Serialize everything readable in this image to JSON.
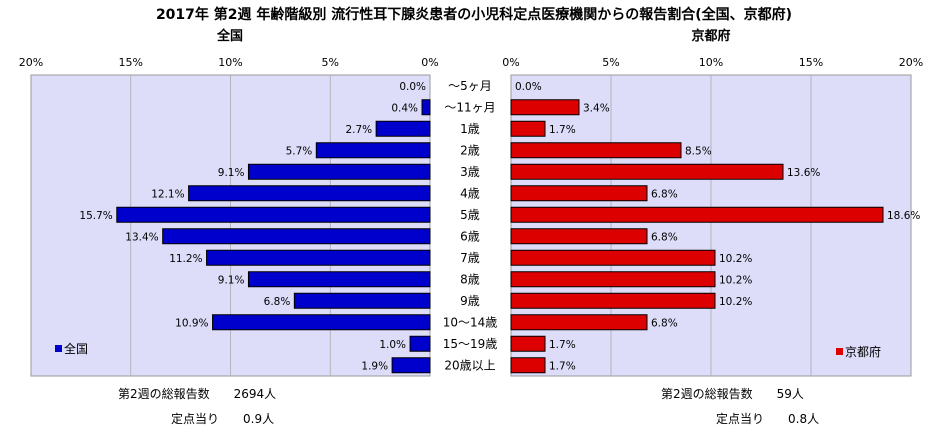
{
  "chart_data": {
    "type": "bar",
    "title": "2017年 第2週 年齢階級別 流行性耳下腺炎患者の小児科定点医療機関からの報告割合(全国、京都府)",
    "categories": [
      "～5ヶ月",
      "～11ヶ月",
      "1歳",
      "2歳",
      "3歳",
      "4歳",
      "5歳",
      "6歳",
      "7歳",
      "8歳",
      "9歳",
      "10～14歳",
      "15～19歳",
      "20歳以上"
    ],
    "x_ticks": [
      "20%",
      "15%",
      "10%",
      "5%",
      "0%"
    ],
    "x_ticks_right": [
      "0%",
      "5%",
      "10%",
      "15%",
      "20%"
    ],
    "xlim": [
      0,
      20
    ],
    "series": [
      {
        "name": "全国",
        "panel_title": "全国",
        "color": "#0000cc",
        "values": [
          0.0,
          0.4,
          2.7,
          5.7,
          9.1,
          12.1,
          15.7,
          13.4,
          11.2,
          9.1,
          6.8,
          10.9,
          1.0,
          1.9
        ],
        "labels": [
          "0.0%",
          "0.4%",
          "2.7%",
          "5.7%",
          "9.1%",
          "12.1%",
          "15.7%",
          "13.4%",
          "11.2%",
          "9.1%",
          "6.8%",
          "10.9%",
          "1.0%",
          "1.9%"
        ]
      },
      {
        "name": "京都府",
        "panel_title": "京都府",
        "color": "#dd0000",
        "values": [
          0.0,
          3.4,
          1.7,
          8.5,
          13.6,
          6.8,
          18.6,
          6.8,
          10.2,
          10.2,
          10.2,
          6.8,
          1.7,
          1.7
        ],
        "labels": [
          "0.0%",
          "3.4%",
          "1.7%",
          "8.5%",
          "13.6%",
          "6.8%",
          "18.6%",
          "6.8%",
          "10.2%",
          "10.2%",
          "10.2%",
          "6.8%",
          "1.7%",
          "1.7%"
        ]
      }
    ],
    "grid": true,
    "legend": "bottom-left / bottom-right"
  },
  "footer": {
    "national_total": "第2週の総報告数　　2694人",
    "national_per": "定点当り　　0.9人",
    "kyoto_total": "第2週の総報告数　　59人",
    "kyoto_per": "定点当り　　0.8人"
  }
}
